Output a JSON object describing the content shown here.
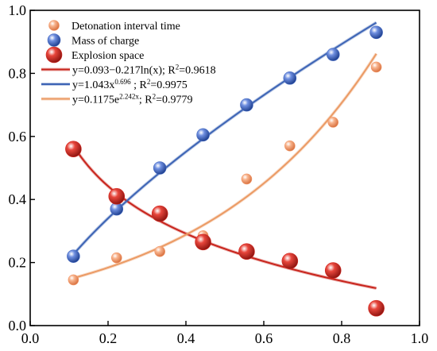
{
  "chart_data": {
    "type": "scatter",
    "xlim": [
      0.0,
      1.0
    ],
    "ylim": [
      0.0,
      1.0
    ],
    "x_ticks": [
      "0.0",
      "0.2",
      "0.4",
      "0.6",
      "0.8",
      "1.0"
    ],
    "y_ticks": [
      "0.0",
      "0.2",
      "0.4",
      "0.6",
      "0.8",
      "1.0"
    ],
    "grid": false,
    "legend_position": "top-left",
    "series": [
      {
        "name": "Detonation interval time",
        "color": "#f39a6b",
        "marker_size": "small",
        "x": [
          0.111,
          0.222,
          0.333,
          0.444,
          0.556,
          0.667,
          0.778,
          0.889
        ],
        "y": [
          0.145,
          0.215,
          0.235,
          0.285,
          0.465,
          0.57,
          0.645,
          0.82
        ]
      },
      {
        "name": "Mass of charge",
        "color": "#4a6fc4",
        "marker_size": "medium",
        "x": [
          0.111,
          0.222,
          0.333,
          0.444,
          0.556,
          0.667,
          0.778,
          0.889
        ],
        "y": [
          0.22,
          0.37,
          0.5,
          0.605,
          0.7,
          0.785,
          0.86,
          0.93
        ]
      },
      {
        "name": "Explosion space",
        "color": "#d42a22",
        "marker_size": "large",
        "x": [
          0.111,
          0.222,
          0.333,
          0.444,
          0.556,
          0.667,
          0.778,
          0.889
        ],
        "y": [
          0.56,
          0.41,
          0.355,
          0.265,
          0.235,
          0.205,
          0.175,
          0.055
        ]
      }
    ],
    "fits": [
      {
        "series": "Explosion space",
        "color": "#c8241c",
        "type": "log",
        "a": 0.093,
        "b": -0.217,
        "label_main": "y=0.093−0.217ln(x); R",
        "label_sup": "2",
        "label_tail": "=0.9618"
      },
      {
        "series": "Mass of charge",
        "color": "#3d64b5",
        "type": "power",
        "a": 1.043,
        "b": 0.696,
        "label_main": "y=1.043x",
        "label_sup": "0.696",
        "label_tail": " ; R",
        "label_sup2": "2",
        "label_tail2": "=0.9975"
      },
      {
        "series": "Detonation interval time",
        "color": "#eb9a64",
        "type": "exp",
        "a": 0.1175,
        "b": 2.242,
        "label_main": "y=0.1175e",
        "label_sup": "2.242x",
        "label_tail": "; R",
        "label_sup2": "2",
        "label_tail2": "=0.9779"
      }
    ]
  }
}
